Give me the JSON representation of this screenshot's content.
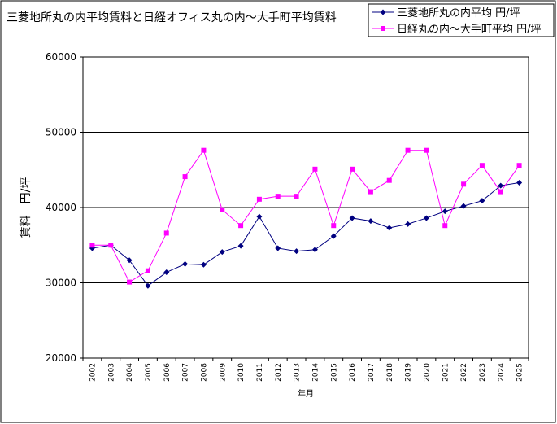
{
  "chart_data": {
    "type": "line",
    "title": "三菱地所丸の内平均賃料と日経オフィス丸の内〜大手町平均賃料",
    "xlabel": "年月",
    "ylabel": "賃料　円/坪",
    "ylim": [
      20000,
      60000
    ],
    "yticks": [
      "20000",
      "30000",
      "40000",
      "50000",
      "60000"
    ],
    "grid": true,
    "legend_position": "top-right",
    "categories": [
      "2002",
      "2003",
      "2004",
      "2005",
      "2006",
      "2007",
      "2008",
      "2009",
      "2010",
      "2011",
      "2012",
      "2013",
      "2014",
      "2015",
      "2016",
      "2017",
      "2018",
      "2019",
      "2020",
      "2021",
      "2022",
      "2023",
      "2024",
      "2025"
    ],
    "series": [
      {
        "name": "三菱地所丸の内平均 円/坪",
        "color": "#000080",
        "marker": "diamond",
        "values": [
          34600,
          35000,
          33000,
          29600,
          31400,
          32500,
          32400,
          34100,
          34900,
          38800,
          34600,
          34200,
          34400,
          36200,
          38600,
          38200,
          37300,
          37800,
          38600,
          39500,
          40200,
          40900,
          42900,
          43300
        ]
      },
      {
        "name": "日経丸の内〜大手町平均 円/坪",
        "color": "#ff00ff",
        "marker": "square",
        "values": [
          35000,
          35000,
          30100,
          31600,
          36600,
          44100,
          47600,
          39700,
          37600,
          41100,
          41500,
          41500,
          45100,
          37600,
          45100,
          42100,
          43600,
          47600,
          47600,
          37600,
          43100,
          45600,
          42100,
          45600
        ]
      }
    ]
  }
}
